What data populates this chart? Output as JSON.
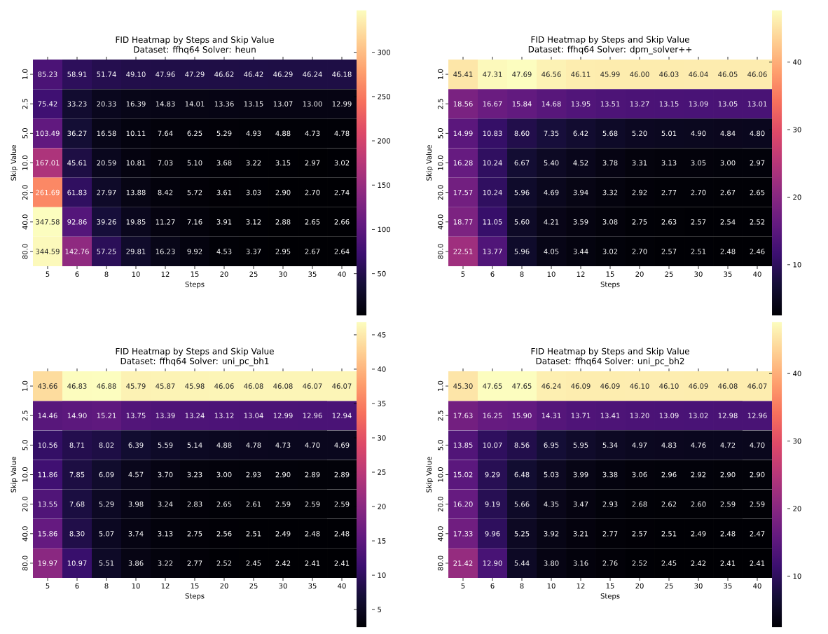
{
  "chart_data": [
    {
      "type": "heatmap",
      "title": "FID Heatmap by Steps and Skip Value",
      "subtitle": "Dataset: ffhq64 Solver: heun",
      "xlabel": "Steps",
      "ylabel": "Skip Value",
      "categories": [
        "5",
        "6",
        "8",
        "10",
        "12",
        "15",
        "20",
        "25",
        "30",
        "35",
        "40"
      ],
      "y_categories": [
        "1.0",
        "2.5",
        "5.0",
        "10.0",
        "20.0",
        "40.0",
        "80.0"
      ],
      "cells": [
        [
          85.23,
          58.91,
          51.74,
          49.1,
          47.96,
          47.29,
          46.62,
          46.42,
          46.29,
          46.24,
          46.18
        ],
        [
          75.42,
          33.23,
          20.33,
          16.39,
          14.83,
          14.01,
          13.36,
          13.15,
          13.07,
          13.0,
          12.99
        ],
        [
          103.49,
          36.27,
          16.58,
          10.11,
          7.64,
          6.25,
          5.29,
          4.93,
          4.88,
          4.73,
          4.78
        ],
        [
          167.01,
          45.61,
          20.59,
          10.81,
          7.03,
          5.1,
          3.68,
          3.22,
          3.15,
          2.97,
          3.02
        ],
        [
          261.69,
          61.83,
          27.97,
          13.88,
          8.42,
          5.72,
          3.61,
          3.03,
          2.9,
          2.7,
          2.74
        ],
        [
          347.58,
          92.86,
          39.26,
          19.85,
          11.27,
          7.16,
          3.91,
          3.12,
          2.88,
          2.65,
          2.66
        ],
        [
          344.59,
          142.76,
          57.25,
          29.81,
          16.23,
          9.92,
          4.53,
          3.37,
          2.95,
          2.67,
          2.64
        ]
      ],
      "cell_labels": [
        [
          "85.23",
          "58.91",
          "51.74",
          "49.10",
          "47.96",
          "47.29",
          "46.62",
          "46.42",
          "46.29",
          "46.24",
          "46.18"
        ],
        [
          "75.42",
          "33.23",
          "20.33",
          "16.39",
          "14.83",
          "14.01",
          "13.36",
          "13.15",
          "13.07",
          "13.00",
          "12.99"
        ],
        [
          "103.49",
          "36.27",
          "16.58",
          "10.11",
          "7.64",
          "6.25",
          "5.29",
          "4.93",
          "4.88",
          "4.73",
          "4.78"
        ],
        [
          "167.01",
          "45.61",
          "20.59",
          "10.81",
          "7.03",
          "5.10",
          "3.68",
          "3.22",
          "3.15",
          "2.97",
          "3.02"
        ],
        [
          "261.69",
          "61.83",
          "27.97",
          "13.88",
          "8.42",
          "5.72",
          "3.61",
          "3.03",
          "2.90",
          "2.70",
          "2.74"
        ],
        [
          "347.58",
          "92.86",
          "39.26",
          "19.85",
          "11.27",
          "7.16",
          "3.91",
          "3.12",
          "2.88",
          "2.65",
          "2.66"
        ],
        [
          "344.59",
          "142.76",
          "57.25",
          "29.81",
          "16.23",
          "9.92",
          "4.53",
          "3.37",
          "2.95",
          "2.67",
          "2.64"
        ]
      ],
      "clim": [
        2.64,
        347.58
      ],
      "cticks": [
        50,
        100,
        150,
        200,
        250,
        300
      ]
    },
    {
      "type": "heatmap",
      "title": "FID Heatmap by Steps and Skip Value",
      "subtitle": "Dataset: ffhq64 Solver: dpm_solver++",
      "xlabel": "Steps",
      "ylabel": "Skip Value",
      "categories": [
        "5",
        "6",
        "8",
        "10",
        "12",
        "15",
        "20",
        "25",
        "30",
        "35",
        "40"
      ],
      "y_categories": [
        "1.0",
        "2.5",
        "5.0",
        "10.0",
        "20.0",
        "40.0",
        "80.0"
      ],
      "cells": [
        [
          45.41,
          47.31,
          47.69,
          46.56,
          46.11,
          45.99,
          46.0,
          46.03,
          46.04,
          46.05,
          46.06
        ],
        [
          18.56,
          16.67,
          15.84,
          14.68,
          13.95,
          13.51,
          13.27,
          13.15,
          13.09,
          13.05,
          13.01
        ],
        [
          14.99,
          10.83,
          8.6,
          7.35,
          6.42,
          5.68,
          5.2,
          5.01,
          4.9,
          4.84,
          4.8
        ],
        [
          16.28,
          10.24,
          6.67,
          5.4,
          4.52,
          3.78,
          3.31,
          3.13,
          3.05,
          3.0,
          2.97
        ],
        [
          17.57,
          10.24,
          5.96,
          4.69,
          3.94,
          3.32,
          2.92,
          2.77,
          2.7,
          2.67,
          2.65
        ],
        [
          18.77,
          11.05,
          5.6,
          4.21,
          3.59,
          3.08,
          2.75,
          2.63,
          2.57,
          2.54,
          2.52
        ],
        [
          22.51,
          13.77,
          5.96,
          4.05,
          3.44,
          3.02,
          2.7,
          2.57,
          2.51,
          2.48,
          2.46
        ]
      ],
      "cell_labels": [
        [
          "45.41",
          "47.31",
          "47.69",
          "46.56",
          "46.11",
          "45.99",
          "46.00",
          "46.03",
          "46.04",
          "46.05",
          "46.06"
        ],
        [
          "18.56",
          "16.67",
          "15.84",
          "14.68",
          "13.95",
          "13.51",
          "13.27",
          "13.15",
          "13.09",
          "13.05",
          "13.01"
        ],
        [
          "14.99",
          "10.83",
          "8.60",
          "7.35",
          "6.42",
          "5.68",
          "5.20",
          "5.01",
          "4.90",
          "4.84",
          "4.80"
        ],
        [
          "16.28",
          "10.24",
          "6.67",
          "5.40",
          "4.52",
          "3.78",
          "3.31",
          "3.13",
          "3.05",
          "3.00",
          "2.97"
        ],
        [
          "17.57",
          "10.24",
          "5.96",
          "4.69",
          "3.94",
          "3.32",
          "2.92",
          "2.77",
          "2.70",
          "2.67",
          "2.65"
        ],
        [
          "18.77",
          "11.05",
          "5.60",
          "4.21",
          "3.59",
          "3.08",
          "2.75",
          "2.63",
          "2.57",
          "2.54",
          "2.52"
        ],
        [
          "22.51",
          "13.77",
          "5.96",
          "4.05",
          "3.44",
          "3.02",
          "2.70",
          "2.57",
          "2.51",
          "2.48",
          "2.46"
        ]
      ],
      "clim": [
        2.46,
        47.69
      ],
      "cticks": [
        10,
        20,
        30,
        40
      ]
    },
    {
      "type": "heatmap",
      "title": "FID Heatmap by Steps and Skip Value",
      "subtitle": "Dataset: ffhq64 Solver: uni_pc_bh1",
      "xlabel": "Steps",
      "ylabel": "Skip Value",
      "categories": [
        "5",
        "6",
        "8",
        "10",
        "12",
        "15",
        "20",
        "25",
        "30",
        "35",
        "40"
      ],
      "y_categories": [
        "1.0",
        "2.5",
        "5.0",
        "10.0",
        "20.0",
        "40.0",
        "80.0"
      ],
      "cells": [
        [
          43.66,
          46.83,
          46.88,
          45.79,
          45.87,
          45.98,
          46.06,
          46.08,
          46.08,
          46.07,
          46.07
        ],
        [
          14.46,
          14.9,
          15.21,
          13.75,
          13.39,
          13.24,
          13.12,
          13.04,
          12.99,
          12.96,
          12.94
        ],
        [
          10.56,
          8.71,
          8.02,
          6.39,
          5.59,
          5.14,
          4.88,
          4.78,
          4.73,
          4.7,
          4.69
        ],
        [
          11.86,
          7.85,
          6.09,
          4.57,
          3.7,
          3.23,
          3.0,
          2.93,
          2.9,
          2.89,
          2.89
        ],
        [
          13.55,
          7.68,
          5.29,
          3.98,
          3.24,
          2.83,
          2.65,
          2.61,
          2.59,
          2.59,
          2.59
        ],
        [
          15.86,
          8.3,
          5.07,
          3.74,
          3.13,
          2.75,
          2.56,
          2.51,
          2.49,
          2.48,
          2.48
        ],
        [
          19.97,
          10.97,
          5.51,
          3.86,
          3.22,
          2.77,
          2.52,
          2.45,
          2.42,
          2.41,
          2.41
        ]
      ],
      "cell_labels": [
        [
          "43.66",
          "46.83",
          "46.88",
          "45.79",
          "45.87",
          "45.98",
          "46.06",
          "46.08",
          "46.08",
          "46.07",
          "46.07"
        ],
        [
          "14.46",
          "14.90",
          "15.21",
          "13.75",
          "13.39",
          "13.24",
          "13.12",
          "13.04",
          "12.99",
          "12.96",
          "12.94"
        ],
        [
          "10.56",
          "8.71",
          "8.02",
          "6.39",
          "5.59",
          "5.14",
          "4.88",
          "4.78",
          "4.73",
          "4.70",
          "4.69"
        ],
        [
          "11.86",
          "7.85",
          "6.09",
          "4.57",
          "3.70",
          "3.23",
          "3.00",
          "2.93",
          "2.90",
          "2.89",
          "2.89"
        ],
        [
          "13.55",
          "7.68",
          "5.29",
          "3.98",
          "3.24",
          "2.83",
          "2.65",
          "2.61",
          "2.59",
          "2.59",
          "2.59"
        ],
        [
          "15.86",
          "8.30",
          "5.07",
          "3.74",
          "3.13",
          "2.75",
          "2.56",
          "2.51",
          "2.49",
          "2.48",
          "2.48"
        ],
        [
          "19.97",
          "10.97",
          "5.51",
          "3.86",
          "3.22",
          "2.77",
          "2.52",
          "2.45",
          "2.42",
          "2.41",
          "2.41"
        ]
      ],
      "clim": [
        2.41,
        46.88
      ],
      "cticks": [
        5,
        10,
        15,
        20,
        25,
        30,
        35,
        40,
        45
      ]
    },
    {
      "type": "heatmap",
      "title": "FID Heatmap by Steps and Skip Value",
      "subtitle": "Dataset: ffhq64 Solver: uni_pc_bh2",
      "xlabel": "Steps",
      "ylabel": "Skip Value",
      "categories": [
        "5",
        "6",
        "8",
        "10",
        "12",
        "15",
        "20",
        "25",
        "30",
        "35",
        "40"
      ],
      "y_categories": [
        "1.0",
        "2.5",
        "5.0",
        "10.0",
        "20.0",
        "40.0",
        "80.0"
      ],
      "cells": [
        [
          45.3,
          47.65,
          47.65,
          46.24,
          46.09,
          46.09,
          46.1,
          46.1,
          46.09,
          46.08,
          46.07
        ],
        [
          17.63,
          16.25,
          15.9,
          14.31,
          13.71,
          13.41,
          13.2,
          13.09,
          13.02,
          12.98,
          12.96
        ],
        [
          13.85,
          10.07,
          8.56,
          6.95,
          5.95,
          5.34,
          4.97,
          4.83,
          4.76,
          4.72,
          4.7
        ],
        [
          15.02,
          9.29,
          6.48,
          5.03,
          3.99,
          3.38,
          3.06,
          2.96,
          2.92,
          2.9,
          2.9
        ],
        [
          16.2,
          9.19,
          5.66,
          4.35,
          3.47,
          2.93,
          2.68,
          2.62,
          2.6,
          2.59,
          2.59
        ],
        [
          17.33,
          9.96,
          5.25,
          3.92,
          3.21,
          2.77,
          2.57,
          2.51,
          2.49,
          2.48,
          2.47
        ],
        [
          21.42,
          12.9,
          5.44,
          3.8,
          3.16,
          2.76,
          2.52,
          2.45,
          2.42,
          2.41,
          2.41
        ]
      ],
      "cell_labels": [
        [
          "45.30",
          "47.65",
          "47.65",
          "46.24",
          "46.09",
          "46.09",
          "46.10",
          "46.10",
          "46.09",
          "46.08",
          "46.07"
        ],
        [
          "17.63",
          "16.25",
          "15.90",
          "14.31",
          "13.71",
          "13.41",
          "13.20",
          "13.09",
          "13.02",
          "12.98",
          "12.96"
        ],
        [
          "13.85",
          "10.07",
          "8.56",
          "6.95",
          "5.95",
          "5.34",
          "4.97",
          "4.83",
          "4.76",
          "4.72",
          "4.70"
        ],
        [
          "15.02",
          "9.29",
          "6.48",
          "5.03",
          "3.99",
          "3.38",
          "3.06",
          "2.96",
          "2.92",
          "2.90",
          "2.90"
        ],
        [
          "16.20",
          "9.19",
          "5.66",
          "4.35",
          "3.47",
          "2.93",
          "2.68",
          "2.62",
          "2.60",
          "2.59",
          "2.59"
        ],
        [
          "17.33",
          "9.96",
          "5.25",
          "3.92",
          "3.21",
          "2.77",
          "2.57",
          "2.51",
          "2.49",
          "2.48",
          "2.47"
        ],
        [
          "21.42",
          "12.90",
          "5.44",
          "3.80",
          "3.16",
          "2.76",
          "2.52",
          "2.45",
          "2.42",
          "2.41",
          "2.41"
        ]
      ],
      "clim": [
        2.41,
        47.65
      ],
      "cticks": [
        10,
        20,
        30,
        40
      ]
    }
  ]
}
